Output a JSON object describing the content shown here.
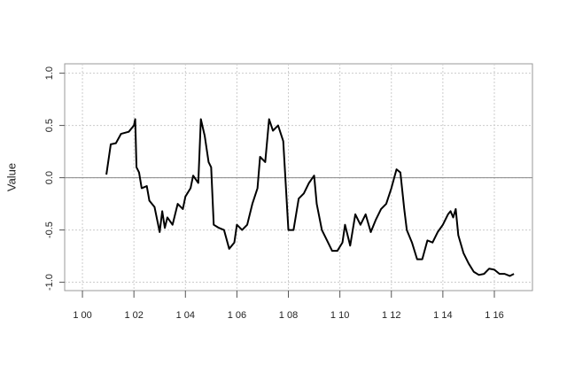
{
  "chart_data": {
    "type": "line",
    "y_label": "Value",
    "x": [
      100.93,
      101.1,
      101.3,
      101.5,
      101.8,
      102.0,
      102.05,
      102.1,
      102.2,
      102.3,
      102.5,
      102.6,
      102.8,
      103.0,
      103.1,
      103.2,
      103.3,
      103.5,
      103.7,
      103.9,
      104.0,
      104.2,
      104.3,
      104.5,
      104.6,
      104.75,
      104.9,
      105.0,
      105.1,
      105.3,
      105.5,
      105.7,
      105.9,
      106.0,
      106.2,
      106.4,
      106.6,
      106.8,
      106.9,
      107.1,
      107.25,
      107.4,
      107.6,
      107.8,
      108.0,
      108.2,
      108.4,
      108.6,
      108.8,
      109.0,
      109.1,
      109.3,
      109.5,
      109.7,
      109.9,
      110.1,
      110.2,
      110.4,
      110.6,
      110.8,
      111.0,
      111.2,
      111.4,
      111.6,
      111.8,
      112.0,
      112.2,
      112.35,
      112.5,
      112.6,
      112.8,
      113.0,
      113.2,
      113.4,
      113.6,
      113.8,
      114.0,
      114.2,
      114.3,
      114.4,
      114.5,
      114.6,
      114.8,
      115.0,
      115.2,
      115.4,
      115.6,
      115.8,
      116.0,
      116.2,
      116.4,
      116.6,
      116.76
    ],
    "series": [
      {
        "color": "#000000",
        "values": [
          0.03,
          0.32,
          0.33,
          0.42,
          0.44,
          0.5,
          0.56,
          0.1,
          0.05,
          -0.1,
          -0.08,
          -0.22,
          -0.28,
          -0.52,
          -0.32,
          -0.48,
          -0.38,
          -0.45,
          -0.25,
          -0.3,
          -0.18,
          -0.1,
          0.02,
          -0.05,
          0.56,
          0.4,
          0.15,
          0.1,
          -0.45,
          -0.48,
          -0.5,
          -0.68,
          -0.62,
          -0.45,
          -0.5,
          -0.45,
          -0.25,
          -0.1,
          0.2,
          0.15,
          0.56,
          0.45,
          0.5,
          0.35,
          -0.5,
          -0.5,
          -0.2,
          -0.15,
          -0.05,
          0.02,
          -0.25,
          -0.5,
          -0.6,
          -0.7,
          -0.7,
          -0.62,
          -0.45,
          -0.65,
          -0.35,
          -0.45,
          -0.35,
          -0.52,
          -0.4,
          -0.3,
          -0.25,
          -0.1,
          0.08,
          0.05,
          -0.3,
          -0.5,
          -0.62,
          -0.78,
          -0.78,
          -0.6,
          -0.62,
          -0.52,
          -0.45,
          -0.35,
          -0.32,
          -0.38,
          -0.3,
          -0.55,
          -0.72,
          -0.82,
          -0.9,
          -0.93,
          -0.92,
          -0.87,
          -0.88,
          -0.92,
          -0.92,
          -0.94,
          -0.92
        ]
      }
    ],
    "xlim": [
      99.31,
      117.48
    ],
    "xticks": [
      {
        "value": 100,
        "label": "1 00"
      },
      {
        "value": 102,
        "label": "1 02"
      },
      {
        "value": 104,
        "label": "1 04"
      },
      {
        "value": 106,
        "label": "1 06"
      },
      {
        "value": 108,
        "label": "1 08"
      },
      {
        "value": 110,
        "label": "1 10"
      },
      {
        "value": 112,
        "label": "1 12"
      },
      {
        "value": 114,
        "label": "1 14"
      },
      {
        "value": 116,
        "label": "1 16"
      }
    ],
    "ylim": [
      -1.08,
      1.09
    ],
    "yticks": [
      {
        "value": -1,
        "label": "-1.0"
      },
      -0.5,
      {
        "value": 0,
        "label": "0.0"
      },
      0.5,
      {
        "value": 1,
        "label": "1.0"
      }
    ],
    "hline": 0,
    "grid": true
  }
}
